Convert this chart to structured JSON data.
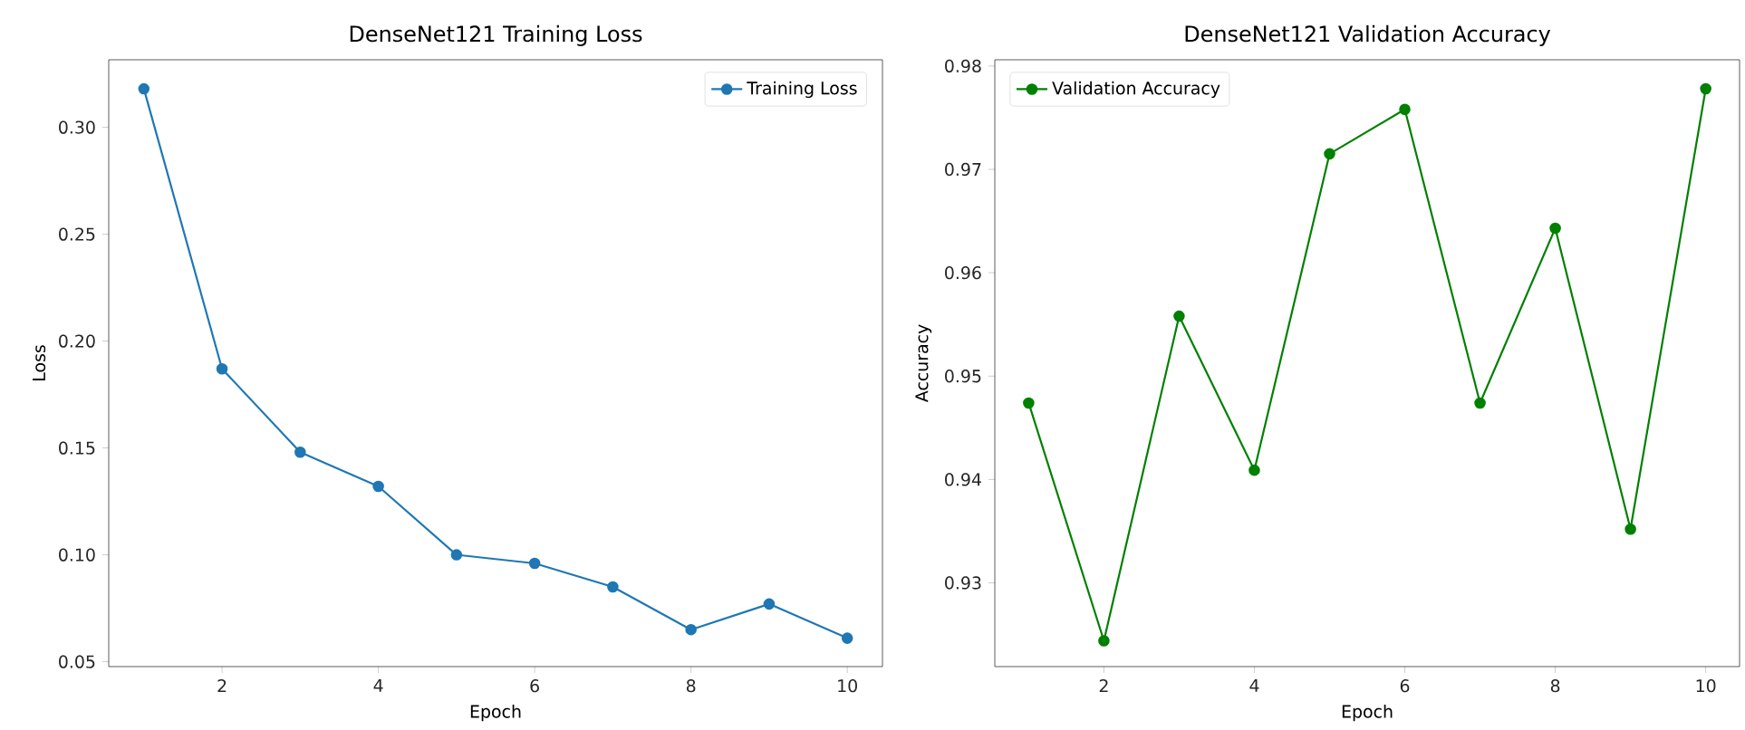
{
  "chart_data": [
    {
      "type": "line",
      "title": "DenseNet121 Training Loss",
      "xlabel": "Epoch",
      "ylabel": "Loss",
      "x": [
        1,
        2,
        3,
        4,
        5,
        6,
        7,
        8,
        9,
        10
      ],
      "series": [
        {
          "name": "Training Loss",
          "color": "#1f77b4",
          "values": [
            0.318,
            0.187,
            0.148,
            0.132,
            0.1,
            0.096,
            0.085,
            0.065,
            0.077,
            0.061
          ]
        }
      ],
      "xlim": [
        0.55,
        10.45
      ],
      "ylim": [
        0.0477,
        0.3316
      ],
      "xticks": [
        2,
        4,
        6,
        8,
        10
      ],
      "yticks": [
        {
          "value": 0.05,
          "label": "0.05"
        },
        {
          "value": 0.1,
          "label": "0.10"
        },
        {
          "value": 0.15,
          "label": "0.15"
        },
        {
          "value": 0.2,
          "label": "0.20"
        },
        {
          "value": 0.25,
          "label": "0.25"
        },
        {
          "value": 0.3,
          "label": "0.30"
        }
      ],
      "legend": "top right",
      "marker": "circle",
      "line_style": "solid",
      "grid": false
    },
    {
      "type": "line",
      "title": "DenseNet121 Validation Accuracy",
      "xlabel": "Epoch",
      "ylabel": "Accuracy",
      "x": [
        1,
        2,
        3,
        4,
        5,
        6,
        7,
        8,
        9,
        10
      ],
      "series": [
        {
          "name": "Validation Accuracy",
          "color": "#008000",
          "values": [
            0.9474,
            0.9244,
            0.9558,
            0.9409,
            0.9715,
            0.9758,
            0.9474,
            0.9643,
            0.9352,
            0.9778
          ]
        }
      ],
      "xlim": [
        0.55,
        10.45
      ],
      "ylim": [
        0.9219,
        0.9806
      ],
      "xticks": [
        2,
        4,
        6,
        8,
        10
      ],
      "yticks": [
        0.93,
        0.94,
        0.95,
        0.96,
        0.97,
        0.98
      ],
      "legend": "top left",
      "marker": "circle",
      "line_style": "solid",
      "grid": false
    }
  ]
}
